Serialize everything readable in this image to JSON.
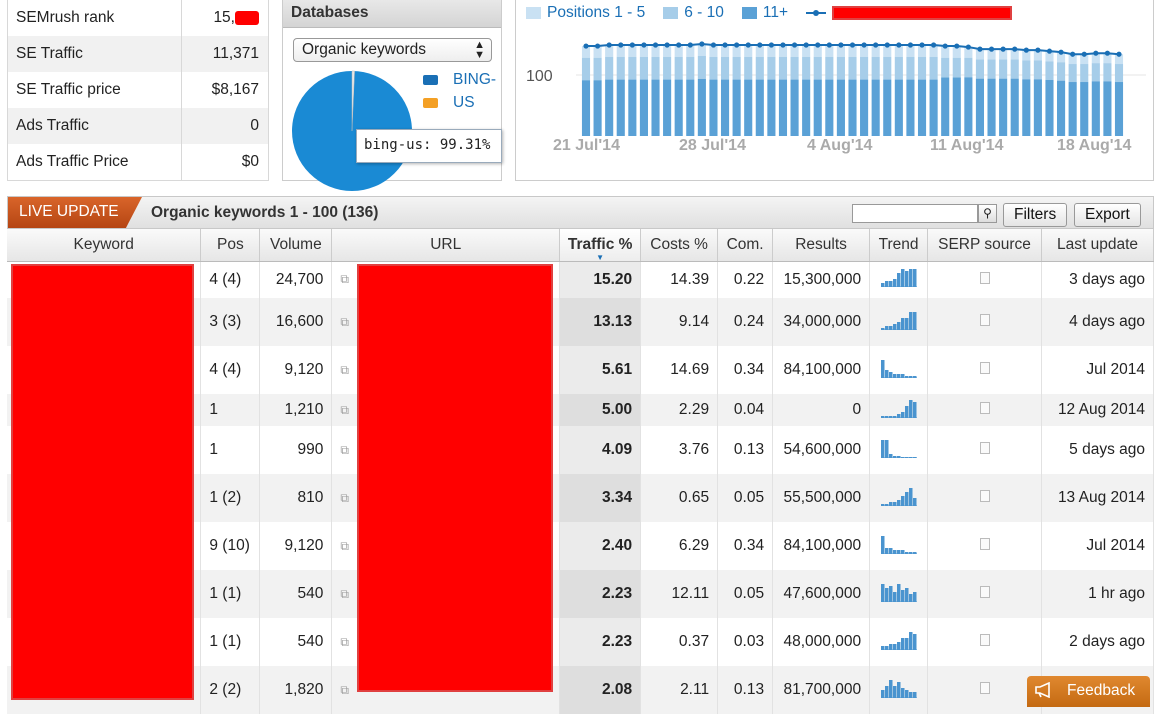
{
  "stats": [
    {
      "label": "SEMrush rank",
      "value": "15,"
    },
    {
      "label": "SE Traffic",
      "value": "11,371"
    },
    {
      "label": "SE Traffic price",
      "value": "$8,167"
    },
    {
      "label": "Ads Traffic",
      "value": "0"
    },
    {
      "label": "Ads Traffic Price",
      "value": "$0"
    }
  ],
  "databases": {
    "title": "Databases",
    "select": "Organic keywords",
    "legend": [
      {
        "label": "BING-",
        "color": "#1a6fb5"
      },
      {
        "label": "US",
        "color": "#f4a025"
      }
    ],
    "pie": {
      "bing_us_percent": 99.31,
      "other_percent": 0.69
    },
    "tooltip": "bing-us: 99.31%"
  },
  "chart_data": {
    "type": "bar",
    "legend": [
      "Positions 1 - 5",
      "6 - 10",
      "11+"
    ],
    "colors": {
      "pos1_5": "#5aa1d6",
      "pos6_10": "#a6cde9",
      "pos11": "#c9e1f3",
      "line": "#1a6fb5"
    },
    "y_ticks": [
      "100"
    ],
    "x_ticks": [
      "21 Jul'14",
      "28 Jul'14",
      "4 Aug'14",
      "11 Aug'14",
      "18 Aug'14"
    ],
    "bar_heights_relative": [
      1,
      1,
      1,
      1,
      1,
      1,
      1,
      1,
      1,
      1,
      1,
      1,
      1,
      1,
      1,
      1,
      1,
      1,
      1,
      1,
      1,
      1,
      1,
      1,
      1,
      1,
      1,
      1,
      1,
      1,
      1,
      1,
      1,
      1,
      1,
      1,
      1,
      1,
      1,
      1,
      1,
      1,
      1,
      1,
      1,
      1,
      1,
      1,
      1,
      1,
      1,
      1,
      1,
      1,
      1,
      1,
      1,
      1,
      1,
      1,
      1,
      1,
      1,
      1,
      1,
      1,
      1,
      1,
      1,
      1,
      1,
      1,
      1,
      1,
      1,
      1,
      1,
      1,
      1,
      1,
      1,
      1,
      1,
      1,
      1,
      1,
      1,
      1
    ],
    "line_values": [
      88,
      88,
      89,
      89,
      89,
      89,
      89,
      89,
      89,
      89,
      90,
      89,
      89,
      89,
      89,
      89,
      89,
      89,
      89,
      89,
      89,
      89,
      89,
      89,
      89,
      89,
      89,
      89,
      89,
      89,
      89,
      88,
      88,
      87,
      85,
      85,
      85,
      85,
      84,
      84,
      83,
      82,
      80,
      80,
      81,
      81,
      80
    ],
    "bar_blue_fraction": [
      0.62,
      0.62,
      0.62,
      0.62,
      0.62,
      0.62,
      0.62,
      0.62,
      0.62,
      0.62,
      0.62,
      0.62,
      0.62,
      0.62,
      0.62,
      0.62,
      0.62,
      0.62,
      0.62,
      0.62,
      0.62,
      0.62,
      0.62,
      0.62,
      0.62,
      0.62,
      0.62,
      0.62,
      0.62,
      0.62,
      0.62,
      0.65,
      0.65,
      0.66,
      0.66,
      0.66,
      0.66,
      0.66,
      0.66,
      0.66,
      0.66,
      0.66,
      0.66,
      0.66,
      0.66,
      0.66,
      0.66
    ],
    "bar_mid_fraction": [
      0.25,
      0.25,
      0.25,
      0.25,
      0.25,
      0.25,
      0.25,
      0.25,
      0.25,
      0.25,
      0.25,
      0.25,
      0.25,
      0.25,
      0.25,
      0.25,
      0.25,
      0.25,
      0.25,
      0.25,
      0.25,
      0.25,
      0.25,
      0.25,
      0.25,
      0.25,
      0.25,
      0.25,
      0.25,
      0.25,
      0.25,
      0.22,
      0.22,
      0.22,
      0.22,
      0.22,
      0.22,
      0.22,
      0.22,
      0.22,
      0.22,
      0.22,
      0.22,
      0.22,
      0.22,
      0.22,
      0.22
    ]
  },
  "toolbar": {
    "live_update": "LIVE UPDATE",
    "title": "Organic keywords 1 - 100 (136)",
    "search_value": "",
    "filters": "Filters",
    "export": "Export"
  },
  "table": {
    "headers": {
      "keyword": "Keyword",
      "pos": "Pos",
      "volume": "Volume",
      "url": "URL",
      "traffic": "Traffic %",
      "costs": "Costs %",
      "com": "Com.",
      "results": "Results",
      "trend": "Trend",
      "serp": "SERP source",
      "last": "Last update"
    },
    "rows": [
      {
        "pos": "4 (4)",
        "volume": "24,700",
        "traffic": "15.20",
        "costs": "14.39",
        "com": "0.22",
        "results": "15,300,000",
        "last": "3 days ago",
        "trend": [
          2,
          3,
          3,
          4,
          7,
          9,
          8,
          9,
          9
        ]
      },
      {
        "pos": "3 (3)",
        "volume": "16,600",
        "traffic": "13.13",
        "costs": "9.14",
        "com": "0.24",
        "results": "34,000,000",
        "last": "4 days ago",
        "trend": [
          1,
          2,
          2,
          3,
          4,
          6,
          6,
          9,
          9
        ]
      },
      {
        "pos": "4 (4)",
        "volume": "9,120",
        "traffic": "5.61",
        "costs": "14.69",
        "com": "0.34",
        "results": "84,100,000",
        "last": "Jul 2014",
        "trend": [
          9,
          4,
          3,
          2,
          2,
          2,
          1,
          1,
          1
        ]
      },
      {
        "pos": "1",
        "volume": "1,210",
        "traffic": "5.00",
        "costs": "2.29",
        "com": "0.04",
        "results": "0",
        "last": "12 Aug 2014",
        "trend": [
          1,
          1,
          1,
          1,
          2,
          3,
          6,
          9,
          8
        ]
      },
      {
        "pos": "1",
        "volume": "990",
        "traffic": "4.09",
        "costs": "3.76",
        "com": "0.13",
        "results": "54,600,000",
        "last": "5 days ago",
        "trend": [
          9,
          9,
          2,
          1,
          1,
          0,
          0,
          0,
          0
        ]
      },
      {
        "pos": "1 (2)",
        "volume": "810",
        "traffic": "3.34",
        "costs": "0.65",
        "com": "0.05",
        "results": "55,500,000",
        "last": "13 Aug 2014",
        "trend": [
          1,
          1,
          2,
          2,
          3,
          5,
          7,
          9,
          4
        ]
      },
      {
        "pos": "9 (10)",
        "volume": "9,120",
        "traffic": "2.40",
        "costs": "6.29",
        "com": "0.34",
        "results": "84,100,000",
        "last": "Jul 2014",
        "trend": [
          9,
          3,
          3,
          2,
          2,
          2,
          1,
          1,
          1
        ]
      },
      {
        "pos": "1 (1)",
        "volume": "540",
        "traffic": "2.23",
        "costs": "12.11",
        "com": "0.05",
        "results": "47,600,000",
        "last": "1 hr ago",
        "trend": [
          9,
          7,
          8,
          5,
          9,
          6,
          7,
          4,
          5
        ]
      },
      {
        "pos": "1 (1)",
        "volume": "540",
        "traffic": "2.23",
        "costs": "0.37",
        "com": "0.03",
        "results": "48,000,000",
        "last": "2 days ago",
        "trend": [
          2,
          2,
          3,
          3,
          4,
          6,
          6,
          9,
          8
        ]
      },
      {
        "pos": "2 (2)",
        "volume": "1,820",
        "traffic": "2.08",
        "costs": "2.11",
        "com": "0.13",
        "results": "81,700,000",
        "last": "",
        "trend": [
          4,
          6,
          9,
          6,
          8,
          5,
          4,
          3,
          3
        ]
      }
    ]
  },
  "feedback": "Feedback"
}
